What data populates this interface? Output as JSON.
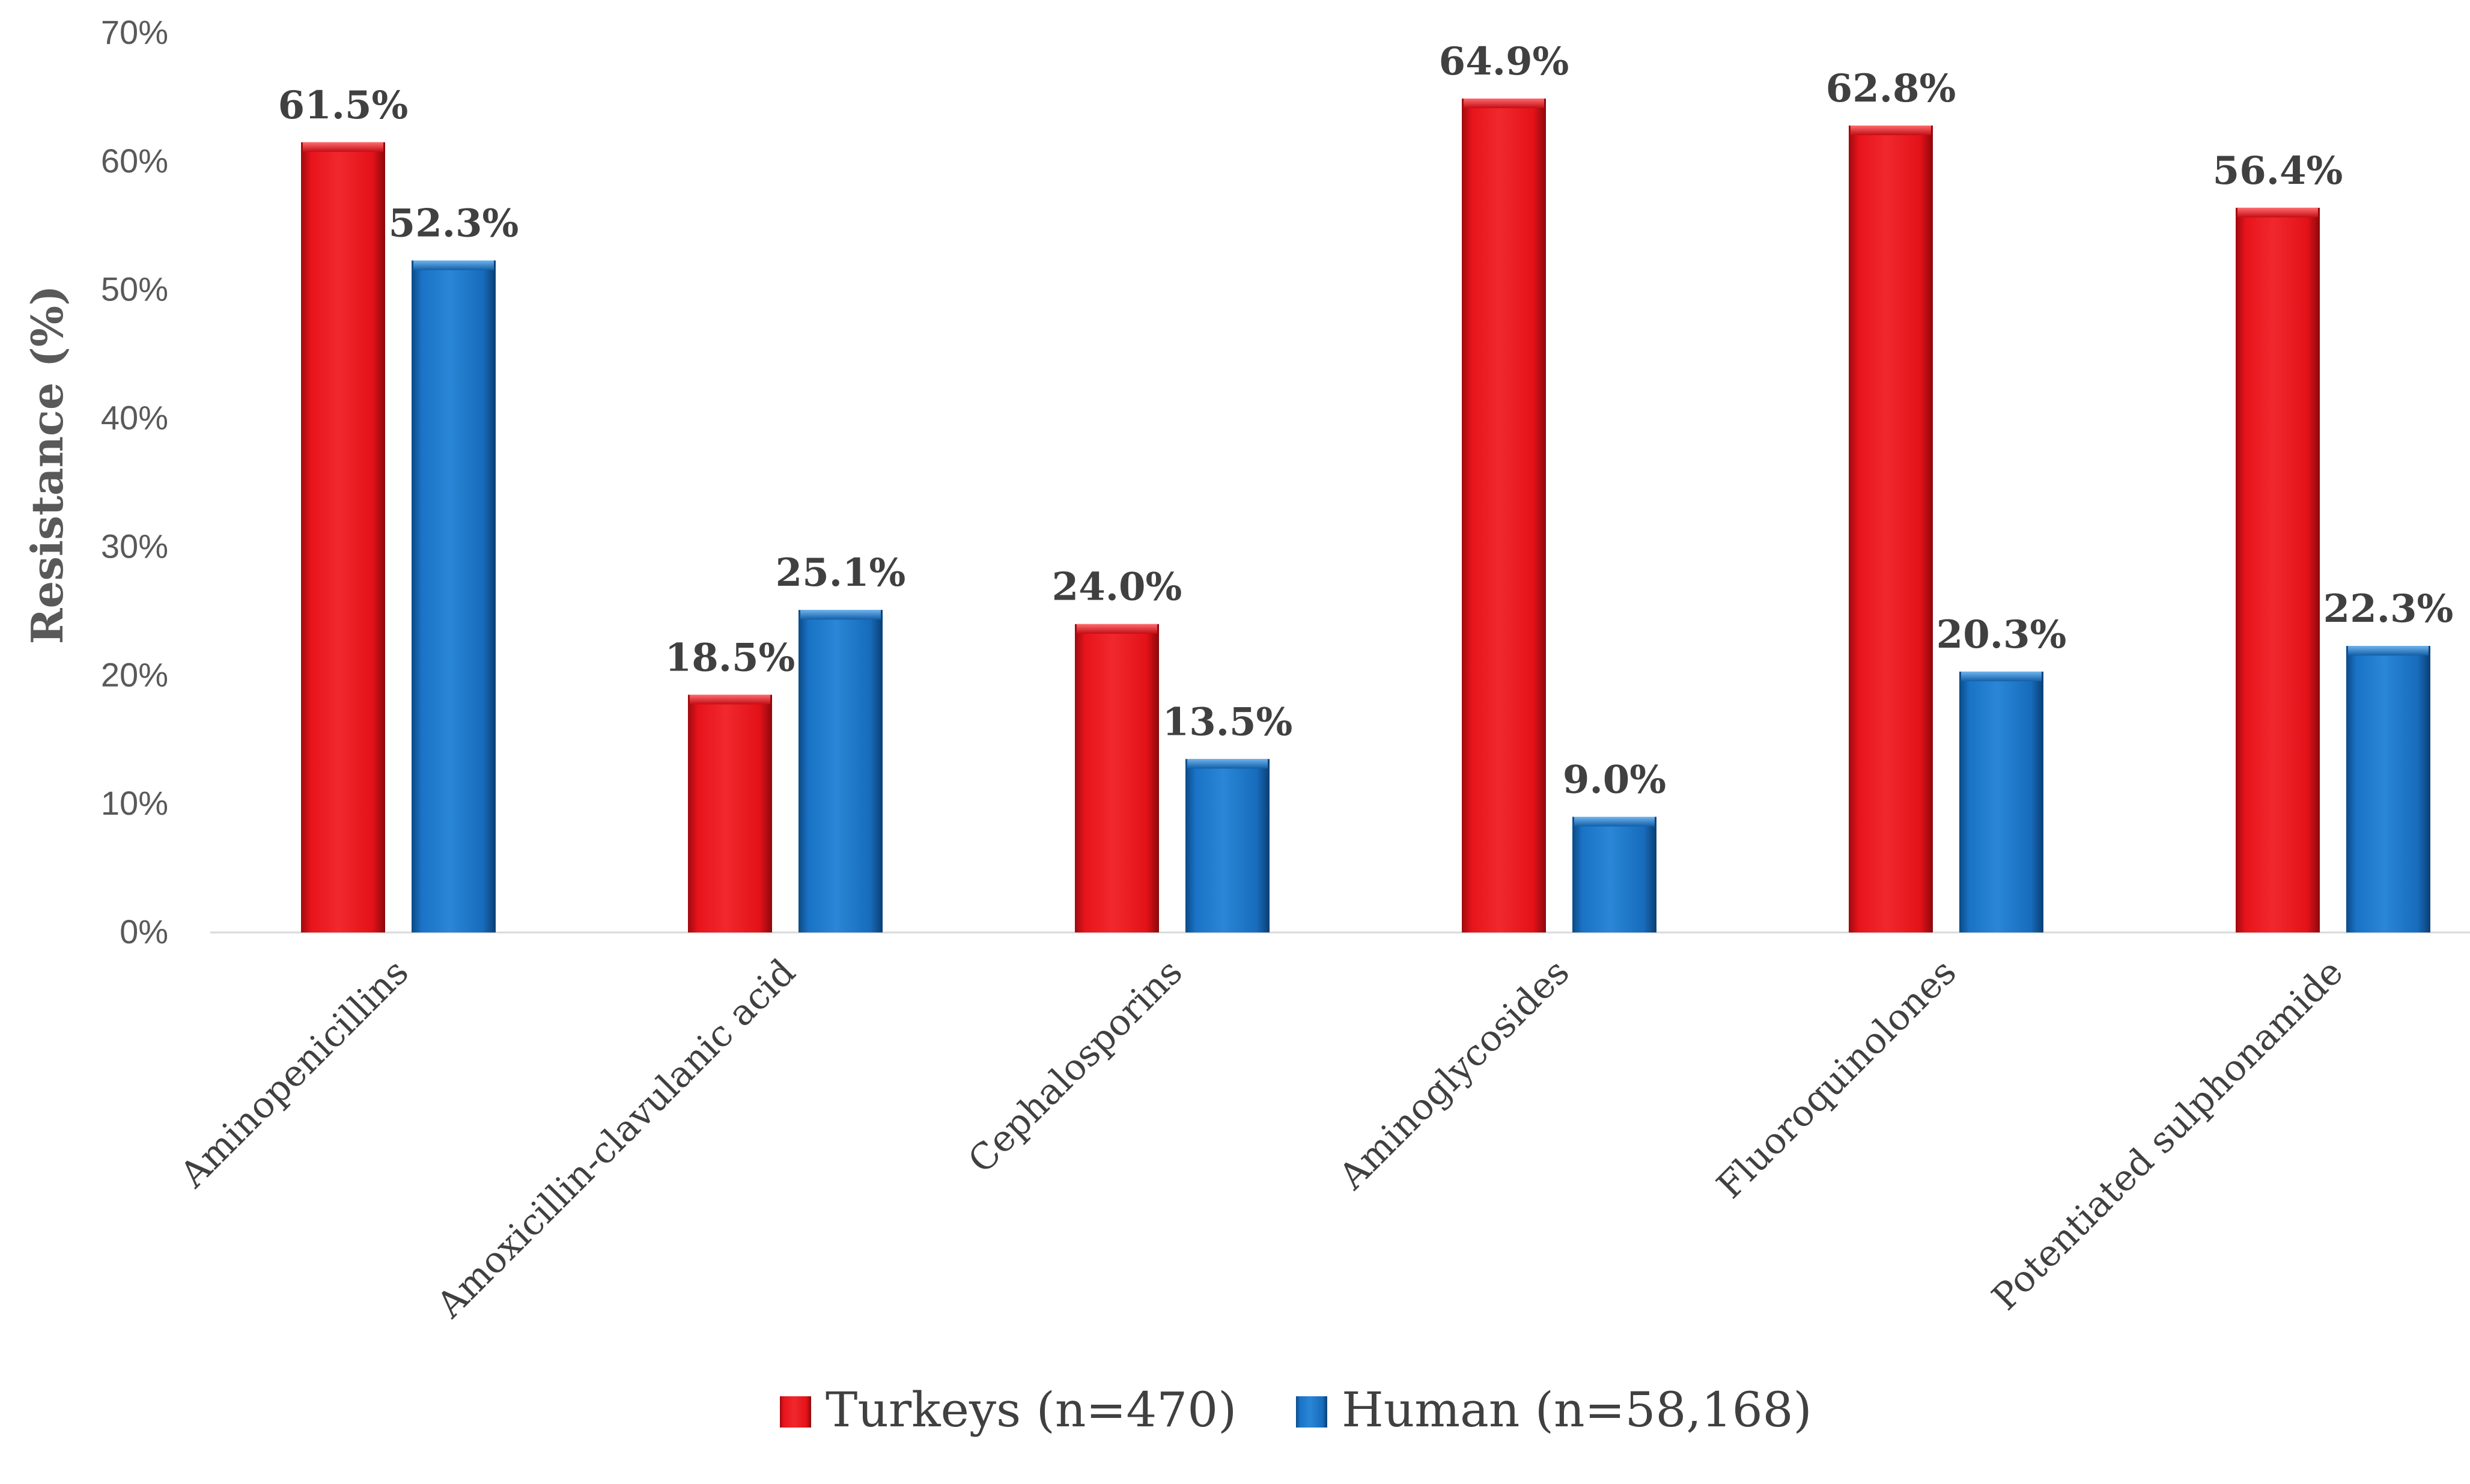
{
  "chart_data": {
    "type": "bar",
    "categories": [
      "Aminopenicillins",
      "Amoxicillin-clavulanic acid",
      "Cephalosporins",
      "Aminoglycosides",
      "Fluoroquinolones",
      "Potentiated sulphonamide"
    ],
    "series": [
      {
        "name": "Turkeys (n=470)",
        "values": [
          61.5,
          18.5,
          24.0,
          64.9,
          62.8,
          56.4
        ],
        "labels": [
          "61.5%",
          "18.5%",
          "24.0%",
          "64.9%",
          "62.8%",
          "56.4%"
        ],
        "color": "#e8141b"
      },
      {
        "name": "Human (n=58,168)",
        "values": [
          52.3,
          25.1,
          13.5,
          9.0,
          20.3,
          22.3
        ],
        "labels": [
          "52.3%",
          "25.1%",
          "13.5%",
          "9.0%",
          "20.3%",
          "22.3%"
        ],
        "color": "#1a73c6"
      }
    ],
    "ylabel": "Resistance (%)",
    "xlabel": "",
    "ylim": [
      0,
      70
    ],
    "yticks": [
      0,
      10,
      20,
      30,
      40,
      50,
      60,
      70
    ],
    "ytick_labels": [
      "0%",
      "10%",
      "20%",
      "30%",
      "40%",
      "50%",
      "60%",
      "70%"
    ],
    "grid": false,
    "legend_position": "bottom-center"
  }
}
